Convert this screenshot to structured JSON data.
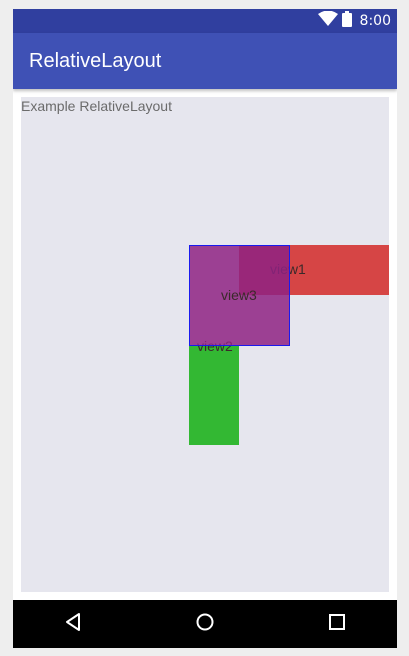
{
  "status_bar": {
    "time": "8:00",
    "icons": [
      "wifi-icon",
      "battery-icon"
    ],
    "color": "#303f9f"
  },
  "app_bar": {
    "title": "RelativeLayout",
    "color": "#3f51b5"
  },
  "content": {
    "caption": "Example RelativeLayout",
    "views": [
      {
        "label": "view1",
        "color": "#d64545"
      },
      {
        "label": "view2",
        "color": "#33b833"
      },
      {
        "label": "view3",
        "color": "#8e2282",
        "border": "#1a1aee"
      }
    ]
  },
  "nav_bar": {
    "buttons": [
      "back-icon",
      "home-icon",
      "recents-icon"
    ]
  }
}
